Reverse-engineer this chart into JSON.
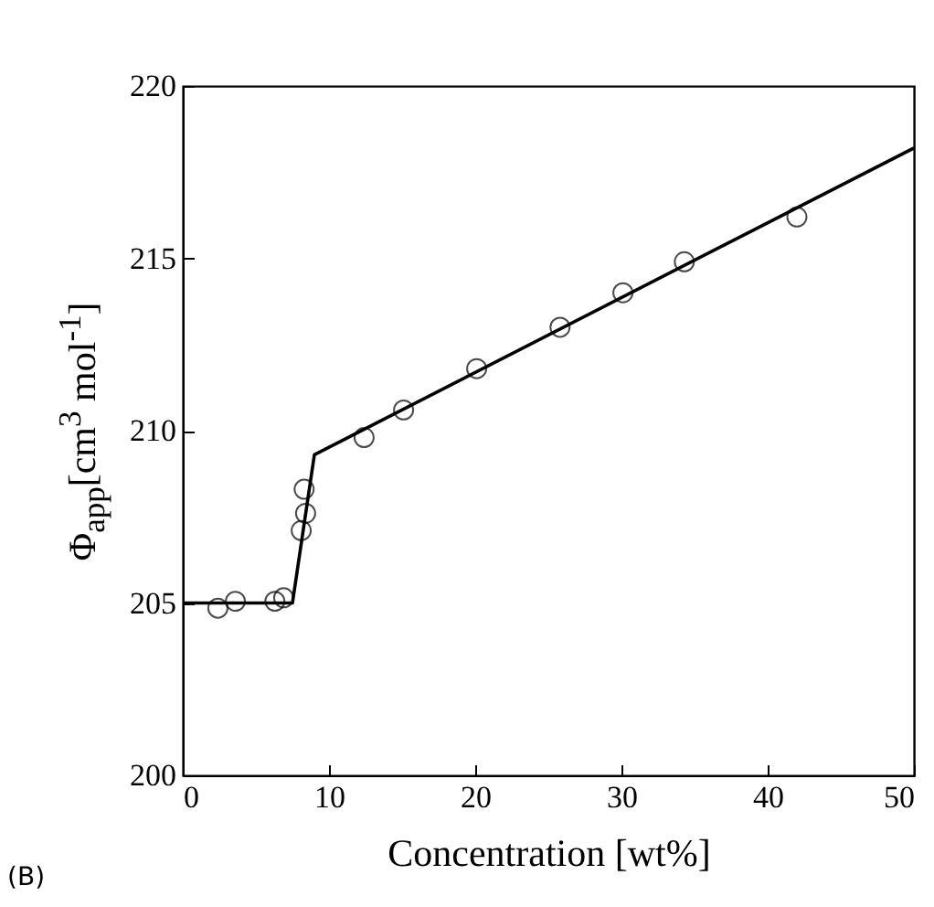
{
  "chart_data": {
    "type": "scatter",
    "xlabel": "Concentration [wt%]",
    "ylabel": "Φ$_{app}$[cm$^{3}$ mol$^{-1}$]",
    "annotations": [
      "(B)"
    ],
    "xlim": [
      0,
      50
    ],
    "xticks": [
      0,
      10,
      20,
      30,
      40,
      50
    ],
    "ylim": [
      200,
      220
    ],
    "yticks": [
      200,
      205,
      210,
      215,
      220
    ],
    "marker": "circle",
    "series": [
      {
        "color": "#000000",
        "x": [
          2.4,
          3.6,
          6.3,
          6.9,
          8.1,
          8.4,
          8.3,
          12.4,
          15.1,
          20.1,
          25.8,
          30.1,
          34.3,
          42.0
        ],
        "values": [
          204.85,
          205.05,
          205.05,
          205.15,
          207.1,
          207.6,
          208.3,
          209.8,
          210.6,
          211.8,
          213.0,
          214.0,
          214.9,
          216.2
        ]
      },
      {
        "type": "line",
        "color": "#000000",
        "line_style": "solid",
        "marker": "none",
        "x": [
          0,
          7.5,
          9,
          50
        ],
        "values": [
          205.0,
          205.0,
          209.3,
          218.2
        ]
      }
    ]
  }
}
